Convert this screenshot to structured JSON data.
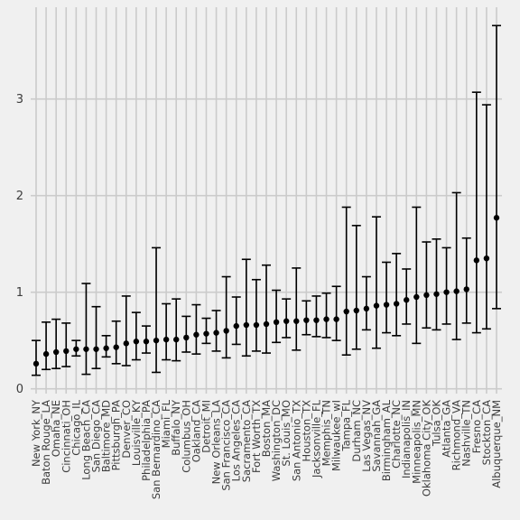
{
  "chart_data": {
    "type": "scatter",
    "title": "",
    "xlabel": "",
    "ylabel": "",
    "ylim": [
      -0.05,
      3.95
    ],
    "y_ticks": [
      "0",
      "1",
      "2",
      "3"
    ],
    "grid": true,
    "legend": "none",
    "colors": {
      "background": "#f0f0f0",
      "grid": "#cbcbcb",
      "marks": "#000000"
    },
    "categories": [
      "New York_NY",
      "Baton Rouge_LA",
      "Omaha_NE",
      "Cincinnati_OH",
      "Chicago_IL",
      "Long Beach_CA",
      "San Diego_CA",
      "Baltimore_MD",
      "Pittsburgh_PA",
      "Denver_CO",
      "Louisville_KY",
      "Philadelphia_PA",
      "San Bernardino_CA",
      "Miami_FL",
      "Buffalo_NY",
      "Columbus_OH",
      "Oakland_CA",
      "Detroit_MI",
      "New Orleans_LA",
      "San Francisco_CA",
      "Los Angeles_CA",
      "Sacramento_CA",
      "Fort Worth_TX",
      "Boston_MA",
      "Washington_DC",
      "St. Louis_MO",
      "San Antonio_TX",
      "Houston_TX",
      "Jacksonville_FL",
      "Memphis_TN",
      "Milwaukee_wI",
      "Tampa_FL",
      "Durham_NC",
      "Las Vegas_NV",
      "Savannah_GA",
      "Birmingham_AL",
      "Charlotte_NC",
      "Indianapolis_IN",
      "Minneapolis_MN",
      "Oklahoma City_OK",
      "Tulsa_OK",
      "Atlanta_GA",
      "Richmond_VA",
      "Nashville_TN",
      "Fresno_CA",
      "Stockton_CA",
      "Albuquerque_NM"
    ],
    "estimate": [
      0.26,
      0.36,
      0.38,
      0.39,
      0.41,
      0.41,
      0.41,
      0.42,
      0.43,
      0.47,
      0.49,
      0.49,
      0.5,
      0.51,
      0.51,
      0.53,
      0.56,
      0.57,
      0.58,
      0.6,
      0.65,
      0.66,
      0.66,
      0.67,
      0.69,
      0.7,
      0.7,
      0.71,
      0.71,
      0.72,
      0.72,
      0.8,
      0.81,
      0.83,
      0.86,
      0.87,
      0.88,
      0.92,
      0.95,
      0.97,
      0.98,
      1.0,
      1.01,
      1.03,
      1.33,
      1.35,
      1.77
    ],
    "lower": [
      0.14,
      0.2,
      0.21,
      0.23,
      0.34,
      0.15,
      0.21,
      0.33,
      0.26,
      0.24,
      0.3,
      0.37,
      0.17,
      0.3,
      0.29,
      0.38,
      0.36,
      0.47,
      0.39,
      0.32,
      0.46,
      0.34,
      0.39,
      0.37,
      0.48,
      0.53,
      0.4,
      0.56,
      0.54,
      0.53,
      0.5,
      0.35,
      0.41,
      0.61,
      0.42,
      0.58,
      0.55,
      0.67,
      0.47,
      0.63,
      0.61,
      0.67,
      0.51,
      0.68,
      0.58,
      0.62,
      0.83
    ],
    "upper": [
      0.5,
      0.69,
      0.72,
      0.68,
      0.5,
      1.09,
      0.85,
      0.55,
      0.7,
      0.96,
      0.79,
      0.65,
      1.46,
      0.88,
      0.93,
      0.75,
      0.87,
      0.73,
      0.81,
      1.16,
      0.95,
      1.34,
      1.13,
      1.28,
      1.02,
      0.93,
      1.25,
      0.91,
      0.96,
      0.99,
      1.06,
      1.88,
      1.69,
      1.16,
      1.78,
      1.31,
      1.4,
      1.24,
      1.88,
      1.52,
      1.55,
      1.46,
      2.03,
      1.56,
      3.07,
      2.94,
      3.76
    ]
  }
}
